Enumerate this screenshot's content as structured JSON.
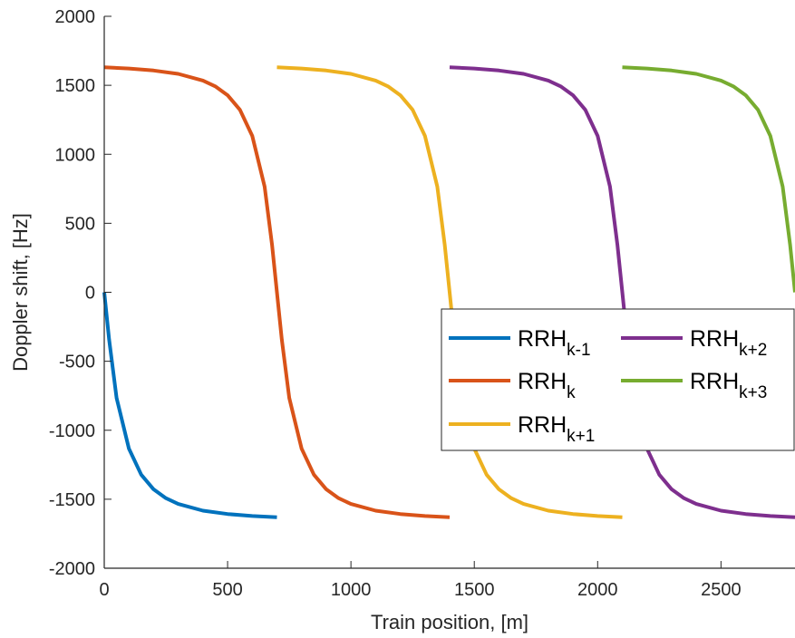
{
  "chart_data": {
    "type": "line",
    "title": "",
    "xlabel": "Train position, [m]",
    "ylabel": "Doppler shift, [Hz]",
    "xlim": [
      0,
      2800
    ],
    "ylim": [
      -2000,
      2000
    ],
    "xticks": [
      0,
      500,
      1000,
      1500,
      2000,
      2500
    ],
    "yticks": [
      -2000,
      -1500,
      -1000,
      -500,
      0,
      500,
      1000,
      1500,
      2000
    ],
    "grid": false,
    "legend_position": "lower-right",
    "series": [
      {
        "name": "RRHk-1",
        "label_main": "RRH",
        "label_sub": "k-1",
        "color": "#0072BD",
        "x": [
          0,
          20,
          50,
          100,
          150,
          200,
          250,
          300,
          400,
          500,
          600,
          700
        ],
        "y": [
          0,
          -344,
          -766,
          -1133,
          -1322,
          -1428,
          -1492,
          -1534,
          -1583,
          -1607,
          -1622,
          -1630
        ]
      },
      {
        "name": "RRHk",
        "label_main": "RRH",
        "label_sub": "k",
        "color": "#D95319",
        "x": [
          0,
          100,
          200,
          300,
          400,
          450,
          500,
          550,
          600,
          650,
          680,
          700,
          720,
          750,
          800,
          850,
          900,
          950,
          1000,
          1100,
          1200,
          1300,
          1400
        ],
        "y": [
          1630,
          1622,
          1607,
          1583,
          1534,
          1492,
          1428,
          1322,
          1133,
          766,
          344,
          0,
          -344,
          -766,
          -1133,
          -1322,
          -1428,
          -1492,
          -1534,
          -1583,
          -1607,
          -1622,
          -1630
        ]
      },
      {
        "name": "RRHk+1",
        "label_main": "RRH",
        "label_sub": "k+1",
        "color": "#EDB120",
        "x": [
          700,
          800,
          900,
          1000,
          1100,
          1150,
          1200,
          1250,
          1300,
          1350,
          1380,
          1400,
          1420,
          1450,
          1500,
          1550,
          1600,
          1650,
          1700,
          1800,
          1900,
          2000,
          2100
        ],
        "y": [
          1630,
          1622,
          1607,
          1583,
          1534,
          1492,
          1428,
          1322,
          1133,
          766,
          344,
          0,
          -344,
          -766,
          -1133,
          -1322,
          -1428,
          -1492,
          -1534,
          -1583,
          -1607,
          -1622,
          -1630
        ]
      },
      {
        "name": "RRHk+2",
        "label_main": "RRH",
        "label_sub": "k+2",
        "color": "#7E2F8E",
        "x": [
          1400,
          1500,
          1600,
          1700,
          1800,
          1850,
          1900,
          1950,
          2000,
          2050,
          2080,
          2100,
          2120,
          2150,
          2200,
          2250,
          2300,
          2350,
          2400,
          2500,
          2600,
          2700,
          2800
        ],
        "y": [
          1630,
          1622,
          1607,
          1583,
          1534,
          1492,
          1428,
          1322,
          1133,
          766,
          344,
          0,
          -344,
          -766,
          -1133,
          -1322,
          -1428,
          -1492,
          -1534,
          -1583,
          -1607,
          -1622,
          -1630
        ]
      },
      {
        "name": "RRHk+3",
        "label_main": "RRH",
        "label_sub": "k+3",
        "color": "#77AC30",
        "x": [
          2100,
          2200,
          2300,
          2400,
          2500,
          2550,
          2600,
          2650,
          2700,
          2750,
          2780,
          2800
        ],
        "y": [
          1630,
          1622,
          1607,
          1583,
          1534,
          1492,
          1428,
          1322,
          1133,
          766,
          344,
          0
        ]
      }
    ]
  }
}
